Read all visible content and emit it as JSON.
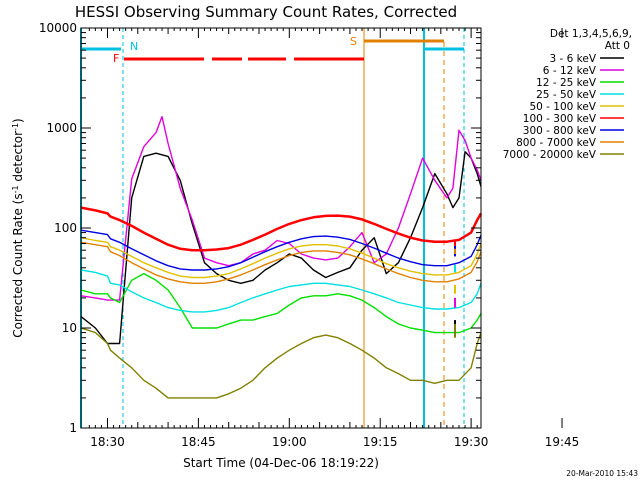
{
  "chart_data": {
    "type": "line",
    "title": "HESSI Observing Summary Count Rates, Corrected",
    "xlabel": "Start Time (04-Dec-06 18:19:22)",
    "ylabel": "Corrected Count Rate (s⁻¹ detector⁻¹)",
    "ylabel_main": "Corrected Count Rate (s",
    "ylabel_mid": " detector",
    "ylabel_end": ")",
    "ylabel_sup": "-1",
    "y_scale": "log",
    "ylim": [
      1,
      10000
    ],
    "xlim_minutes": [
      -4.37,
      61.63
    ],
    "x_ticks": [
      {
        "label": "18:30",
        "min": 0
      },
      {
        "label": "18:45",
        "min": 15
      },
      {
        "label": "19:00",
        "min": 30
      },
      {
        "label": "19:15",
        "min": 45
      },
      {
        "label": "19:30",
        "min": 60
      },
      {
        "label": "19:45",
        "min": 75
      }
    ],
    "y_ticks": [
      {
        "label": "1",
        "value": 1
      },
      {
        "label": "10",
        "value": 10
      },
      {
        "label": "100",
        "value": 100
      },
      {
        "label": "1000",
        "value": 1000
      },
      {
        "label": "10000",
        "value": 10000
      }
    ],
    "legend_header_1": "Det 1,3,4,5,6,9,",
    "legend_header_2": "Att 0",
    "legend_placement": "right",
    "series": [
      {
        "name": "3 - 6 keV",
        "color": "#000000",
        "x": [
          -4.37,
          -2,
          0,
          0.5,
          2,
          4,
          6,
          8,
          10,
          12,
          14,
          16,
          18,
          20,
          22,
          24,
          26,
          28,
          30,
          32,
          34,
          36,
          38,
          40,
          42,
          44,
          46,
          48,
          50,
          52,
          54,
          56,
          57,
          58,
          59,
          60,
          61,
          61.63
        ],
        "y": [
          13,
          10,
          7,
          7,
          7,
          200,
          520,
          560,
          520,
          300,
          110,
          45,
          35,
          30,
          28,
          30,
          38,
          45,
          55,
          50,
          38,
          32,
          36,
          40,
          60,
          80,
          35,
          45,
          80,
          160,
          350,
          220,
          160,
          200,
          580,
          500,
          350,
          260
        ]
      },
      {
        "name": "6 - 12 keV",
        "color": "#e000e0",
        "x": [
          -4.37,
          -2,
          0,
          0.5,
          2,
          4,
          6,
          8,
          9,
          10,
          12,
          14,
          16,
          18,
          20,
          22,
          24,
          26,
          28,
          30,
          32,
          34,
          36,
          38,
          40,
          42,
          44,
          46,
          48,
          50,
          52,
          54,
          56,
          57,
          58,
          59,
          60,
          61,
          61.63
        ],
        "y": [
          21,
          20,
          19,
          19,
          19,
          310,
          650,
          900,
          1300,
          700,
          250,
          120,
          50,
          45,
          42,
          45,
          55,
          60,
          75,
          70,
          55,
          50,
          48,
          50,
          65,
          90,
          45,
          55,
          100,
          220,
          500,
          300,
          200,
          250,
          950,
          750,
          500,
          380,
          300
        ]
      },
      {
        "name": "12 - 25 keV",
        "color": "#00e000",
        "x": [
          -4.37,
          -2,
          0,
          0.5,
          2,
          4,
          6,
          8,
          10,
          12,
          14,
          16,
          18,
          20,
          22,
          24,
          26,
          28,
          30,
          32,
          34,
          36,
          38,
          40,
          42,
          44,
          46,
          48,
          50,
          52,
          54,
          56,
          58,
          60,
          61,
          61.63
        ],
        "y": [
          24,
          22,
          22,
          20,
          18,
          30,
          35,
          30,
          24,
          16,
          10,
          10,
          10,
          11,
          12,
          12,
          13,
          14,
          17,
          20,
          21,
          21,
          22,
          21,
          19,
          16,
          13,
          11,
          10,
          9.5,
          9,
          9,
          9,
          10,
          12,
          14
        ]
      },
      {
        "name": "25 - 50 keV",
        "color": "#00e0e0",
        "x": [
          -4.37,
          -2,
          0,
          0.5,
          2,
          4,
          6,
          8,
          10,
          12,
          14,
          16,
          18,
          20,
          22,
          24,
          26,
          28,
          30,
          32,
          34,
          36,
          38,
          40,
          42,
          44,
          46,
          48,
          50,
          52,
          54,
          56,
          58,
          60,
          61,
          61.63
        ],
        "y": [
          38,
          36,
          33,
          28,
          27,
          23,
          20,
          18,
          16,
          15,
          14.5,
          14.5,
          15,
          16,
          18,
          20,
          22,
          24,
          26,
          27,
          28,
          28,
          27,
          26,
          24,
          22,
          20,
          18,
          17,
          16,
          15.5,
          15.5,
          16,
          18,
          22,
          28
        ]
      },
      {
        "name": "50 - 100 keV",
        "color": "#e0c000",
        "x": [
          -4.37,
          -2,
          0,
          0.5,
          2,
          4,
          6,
          8,
          10,
          12,
          14,
          16,
          18,
          20,
          22,
          24,
          26,
          28,
          30,
          32,
          34,
          36,
          38,
          40,
          42,
          44,
          46,
          48,
          50,
          52,
          54,
          56,
          58,
          60,
          61,
          61.63
        ],
        "y": [
          80,
          75,
          72,
          65,
          60,
          52,
          45,
          40,
          36,
          33,
          32,
          32,
          33,
          35,
          39,
          44,
          50,
          56,
          62,
          66,
          68,
          68,
          66,
          62,
          56,
          50,
          44,
          40,
          37,
          35,
          34,
          34,
          36,
          42,
          55,
          70
        ]
      },
      {
        "name": "100 - 300 keV",
        "color": "#ff0000",
        "x": [
          -4.37,
          -2,
          0,
          0.5,
          2,
          4,
          6,
          8,
          10,
          12,
          14,
          16,
          18,
          20,
          22,
          24,
          26,
          28,
          30,
          32,
          34,
          36,
          38,
          40,
          42,
          44,
          46,
          48,
          50,
          52,
          54,
          56,
          58,
          60,
          61,
          61.63
        ],
        "y": [
          160,
          150,
          140,
          130,
          120,
          105,
          90,
          78,
          68,
          62,
          60,
          60,
          61,
          63,
          68,
          76,
          86,
          98,
          110,
          120,
          128,
          132,
          133,
          130,
          122,
          110,
          98,
          88,
          80,
          75,
          73,
          73,
          76,
          90,
          120,
          140
        ]
      },
      {
        "name": "300 - 800 keV",
        "color": "#0000e0",
        "x": [
          -4.37,
          -2,
          0,
          0.5,
          2,
          4,
          6,
          8,
          10,
          12,
          14,
          16,
          18,
          20,
          22,
          24,
          26,
          28,
          30,
          32,
          34,
          36,
          38,
          40,
          42,
          44,
          46,
          48,
          50,
          52,
          54,
          56,
          58,
          60,
          61,
          61.63
        ],
        "y": [
          95,
          90,
          86,
          78,
          72,
          62,
          54,
          47,
          42,
          39,
          38,
          38,
          39,
          41,
          45,
          51,
          58,
          65,
          72,
          78,
          82,
          83,
          81,
          77,
          70,
          63,
          56,
          50,
          46,
          43,
          42,
          42,
          45,
          52,
          68,
          85
        ]
      },
      {
        "name": "800 - 7000 keV",
        "color": "#e08000",
        "x": [
          -4.37,
          -2,
          0,
          0.5,
          2,
          4,
          6,
          8,
          10,
          12,
          14,
          16,
          18,
          20,
          22,
          24,
          26,
          28,
          30,
          32,
          34,
          36,
          38,
          40,
          42,
          44,
          46,
          48,
          50,
          52,
          54,
          56,
          58,
          60,
          61,
          61.63
        ],
        "y": [
          72,
          68,
          65,
          58,
          53,
          45,
          39,
          34,
          31,
          29,
          28,
          28,
          29,
          31,
          34,
          38,
          43,
          48,
          53,
          57,
          59,
          59,
          57,
          54,
          49,
          44,
          39,
          35,
          32,
          30,
          29,
          29,
          31,
          36,
          46,
          58
        ]
      },
      {
        "name": "7000 - 20000 keV",
        "color": "#808000",
        "x": [
          -4.37,
          -2,
          0,
          0.5,
          2,
          4,
          6,
          8,
          10,
          12,
          14,
          16,
          18,
          20,
          22,
          24,
          26,
          28,
          30,
          32,
          34,
          36,
          38,
          40,
          42,
          44,
          46,
          48,
          50,
          52,
          54,
          56,
          58,
          60,
          61,
          61.63
        ],
        "y": [
          10,
          9,
          7,
          6,
          5,
          4,
          3,
          2.5,
          2,
          2,
          2,
          2,
          2,
          2.2,
          2.5,
          3,
          4,
          5,
          6,
          7,
          8,
          8.5,
          8,
          7,
          6,
          5,
          4,
          3.5,
          3,
          3,
          2.8,
          3,
          3,
          4,
          7,
          9
        ]
      }
    ],
    "markers": [
      {
        "label": "N",
        "color": "#00c0e0"
      },
      {
        "label": "F",
        "color": "#ff0000"
      },
      {
        "label": "S",
        "color": "#e08000"
      }
    ],
    "stamp": "20-Mar-2010 15:43"
  }
}
